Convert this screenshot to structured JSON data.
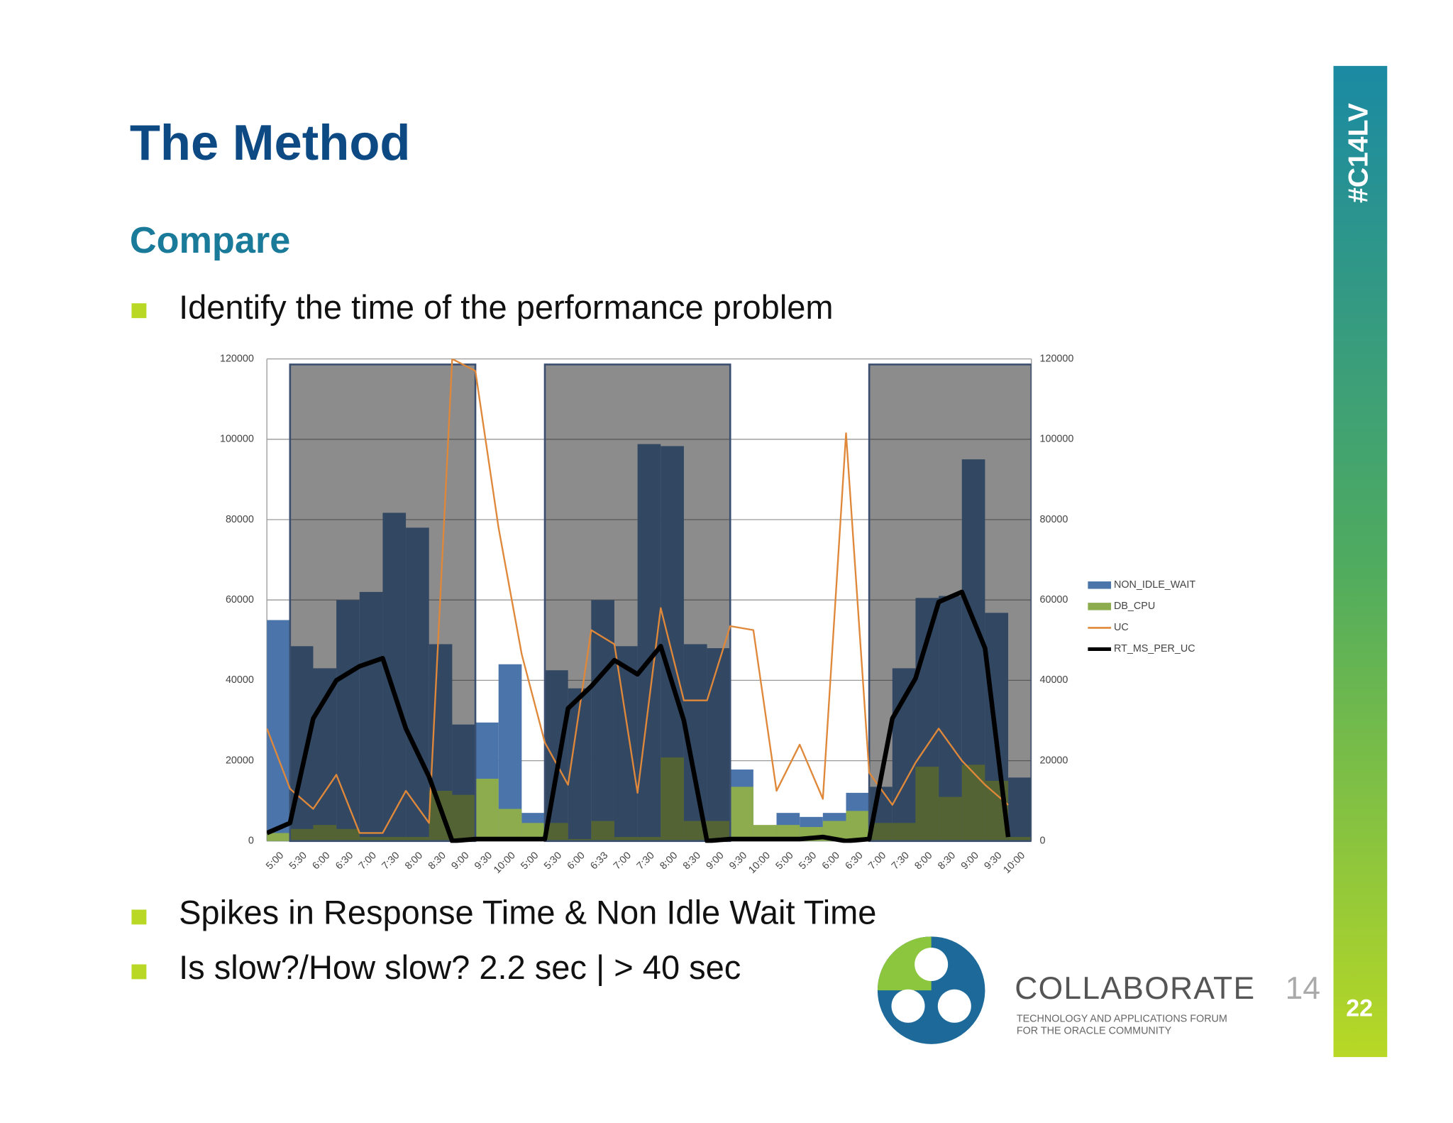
{
  "slide": {
    "title": "The Method",
    "subtitle": "Compare",
    "bullets": [
      "Identify the time of the performance problem",
      "Spikes in Response Time & Non Idle Wait Time",
      "Is slow?/How slow?   2.2 sec | > 40 sec"
    ],
    "tag": "#C14LV",
    "page": "22",
    "logo": {
      "name": "COLLABORATE",
      "year": "14",
      "line1": "TECHNOLOGY AND APPLICATIONS FORUM",
      "line2": "FOR THE ORACLE COMMUNITY"
    }
  },
  "chart_data": {
    "type": "bar-line",
    "categories": [
      "5:00",
      "5:30",
      "6:00",
      "6:30",
      "7:00",
      "7:30",
      "8:00",
      "8:30",
      "9:00",
      "9:30",
      "10:00",
      "5:00",
      "5:30",
      "6:00",
      "6:33",
      "7:00",
      "7:30",
      "8:00",
      "8:30",
      "9:00",
      "9:30",
      "10:00",
      "5:00",
      "5:30",
      "6:00",
      "6:30",
      "7:00",
      "7:30",
      "8:00",
      "8:30",
      "9:00",
      "9:30",
      "10:00"
    ],
    "series": [
      {
        "name": "NON_IDLE_WAIT",
        "kind": "bar",
        "color": "#4a74aa",
        "values": [
          55000,
          48500,
          43000,
          60000,
          62000,
          81700,
          78000,
          49000,
          29000,
          29500,
          44000,
          7000,
          42500,
          38000,
          60000,
          48500,
          98800,
          98300,
          49000,
          48000,
          17800,
          3500,
          7000,
          6000,
          7000,
          12000,
          13500,
          43000,
          60500,
          61000,
          95000,
          56800,
          15800
        ]
      },
      {
        "name": "DB_CPU",
        "kind": "bar",
        "color": "#8cac4e",
        "values": [
          2000,
          3000,
          4000,
          3000,
          1000,
          1000,
          1000,
          12500,
          11500,
          15500,
          8000,
          4500,
          4500,
          500,
          5000,
          1000,
          1000,
          20800,
          5000,
          5000,
          13500,
          4000,
          4000,
          3500,
          5000,
          7500,
          4500,
          4500,
          18500,
          11000,
          19000,
          15000,
          1000
        ]
      },
      {
        "name": "UC",
        "kind": "line",
        "color": "#e0883a",
        "values": [
          28000,
          13000,
          8000,
          16500,
          2000,
          2000,
          12500,
          4500,
          120000,
          117000,
          78000,
          46500,
          24500,
          14000,
          52500,
          49000,
          12000,
          58000,
          35000,
          35000,
          53500,
          52500,
          12500,
          24000,
          10500,
          101500,
          17000,
          9000,
          19500,
          28000,
          20000,
          14000,
          9000
        ]
      },
      {
        "name": "RT_MS_PER_UC",
        "kind": "line",
        "color": "#000000",
        "values": [
          2000,
          4500,
          30500,
          40000,
          43500,
          45500,
          28000,
          16000,
          0,
          500,
          500,
          500,
          500,
          33000,
          38500,
          45000,
          41500,
          48500,
          30000,
          0,
          500,
          500,
          500,
          500,
          1000,
          0,
          500,
          30500,
          40500,
          59500,
          62000,
          48000,
          1000
        ]
      }
    ],
    "ylim": [
      0,
      120000
    ],
    "yticks": [
      0,
      20000,
      40000,
      60000,
      80000,
      100000,
      120000
    ],
    "grid": true
  }
}
